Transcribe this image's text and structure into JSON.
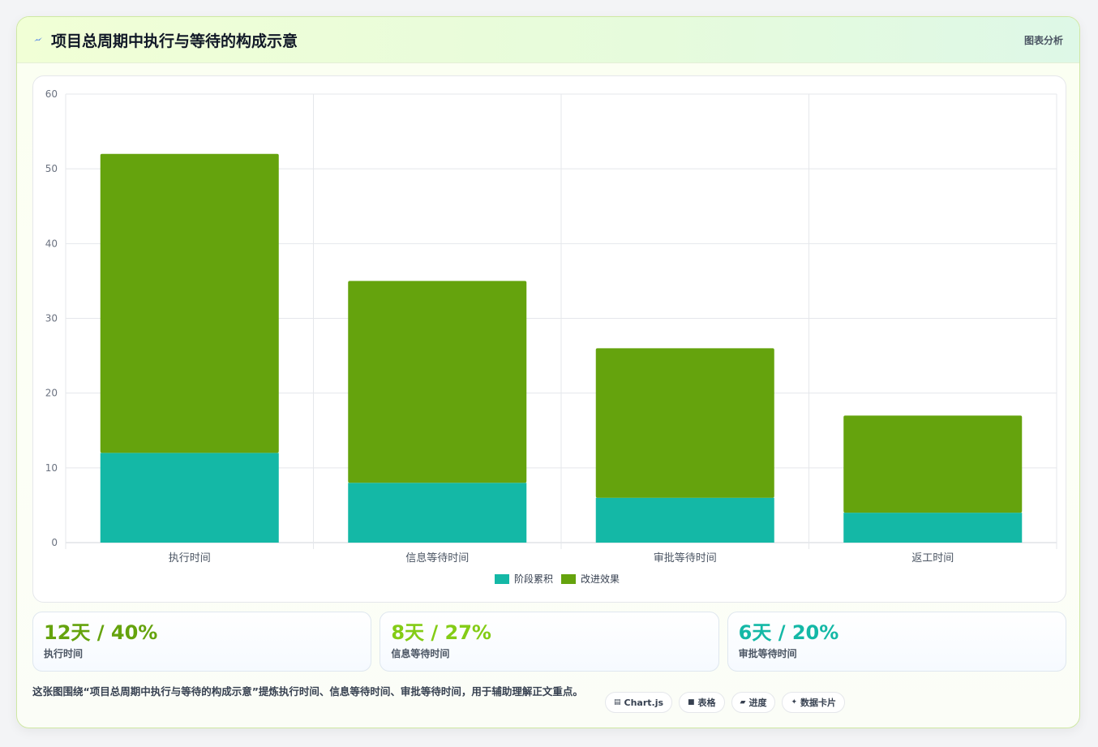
{
  "header": {
    "title": "项目总周期中执行与等待的构成示意",
    "right_label": "图表分析",
    "icon": "bolt-icon"
  },
  "chart_data": {
    "type": "bar",
    "stacked": true,
    "categories": [
      "执行时间",
      "信息等待时间",
      "审批等待时间",
      "返工时间"
    ],
    "series": [
      {
        "name": "阶段累积",
        "values": [
          12,
          8,
          6,
          4
        ],
        "color": "#14b8a6"
      },
      {
        "name": "改进效果",
        "values": [
          40,
          27,
          20,
          13
        ],
        "color": "#65a30d"
      }
    ],
    "ylim": [
      0,
      60
    ],
    "yticks": [
      0,
      10,
      20,
      30,
      40,
      50,
      60
    ],
    "grid": true,
    "legend": "bottom"
  },
  "stats": [
    {
      "value": "12天 / 40%",
      "label": "执行时间",
      "color": "#65a30d"
    },
    {
      "value": "8天 / 27%",
      "label": "信息等待时间",
      "color": "#84cc16"
    },
    {
      "value": "6天 / 20%",
      "label": "审批等待时间",
      "color": "#14b8a6"
    }
  ],
  "footer": {
    "description": "这张图围绕“项目总周期中执行与等待的构成示意”提炼执行时间、信息等待时间、审批等待时间，用于辅助理解正文重点。",
    "chips": [
      {
        "icon": "chart-icon",
        "glyph": "▤",
        "label": "Chart.js"
      },
      {
        "icon": "table-icon",
        "glyph": "■",
        "label": "表格"
      },
      {
        "icon": "progress-icon",
        "glyph": "▰",
        "label": "进度"
      },
      {
        "icon": "sparkle-icon",
        "glyph": "✦",
        "label": "数据卡片"
      }
    ]
  }
}
